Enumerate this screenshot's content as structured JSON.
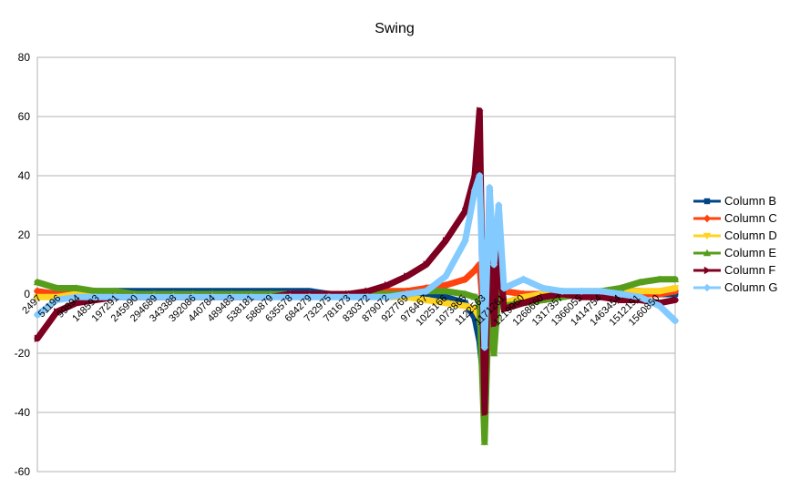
{
  "chart_data": {
    "type": "line",
    "title": "Swing",
    "xlabel": "",
    "ylabel": "",
    "ylim": [
      -60,
      80
    ],
    "yticks": [
      -60,
      -40,
      -20,
      0,
      20,
      40,
      60,
      80
    ],
    "grid": true,
    "legend_position": "right",
    "x_tick_labels": [
      "2497",
      "51196",
      "99894",
      "148593",
      "197291",
      "245990",
      "294689",
      "343388",
      "392086",
      "440784",
      "489483",
      "538181",
      "586879",
      "635578",
      "684279",
      "732975",
      "781673",
      "830372",
      "879072",
      "927769",
      "976467",
      "1025166",
      "1073865",
      "1122563",
      "1171261",
      "1219960",
      "1268660",
      "1317357",
      "1366055",
      "1414754",
      "1463454",
      "1512151",
      "1560850"
    ],
    "x": [
      2497,
      51196,
      99894,
      148593,
      197291,
      245990,
      294689,
      343388,
      392086,
      440784,
      489483,
      538181,
      586879,
      635578,
      684279,
      732975,
      781673,
      830372,
      879072,
      927769,
      976467,
      1025166,
      1073865,
      1098000,
      1110000,
      1122563,
      1135000,
      1146000,
      1158000,
      1171261,
      1219960,
      1268660,
      1317357,
      1366055,
      1414754,
      1463454,
      1512151,
      1560850,
      1600000
    ],
    "series": [
      {
        "name": "Column B",
        "color": "#004586",
        "marker": "square",
        "values": [
          -1,
          0,
          1,
          1,
          1,
          1,
          1,
          1,
          1,
          1,
          1,
          1,
          1,
          1,
          1,
          0,
          0,
          0,
          0,
          0,
          0,
          -1,
          -3,
          -8,
          -16,
          -32,
          12,
          -8,
          10,
          -3,
          -1,
          0,
          0,
          0,
          1,
          1,
          1,
          0,
          0
        ]
      },
      {
        "name": "Column C",
        "color": "#ff420e",
        "marker": "diamond",
        "values": [
          1,
          0,
          0,
          0,
          0,
          0,
          0,
          0,
          0,
          0,
          0,
          0,
          0,
          0,
          0,
          0,
          0,
          0,
          1,
          1,
          2,
          3,
          5,
          8,
          10,
          -12,
          18,
          -6,
          5,
          1,
          0,
          0,
          0,
          0,
          0,
          0,
          0,
          0,
          1
        ]
      },
      {
        "name": "Column D",
        "color": "#ffd320",
        "marker": "triangle-down",
        "values": [
          -1,
          -1,
          0,
          0,
          0,
          0,
          0,
          0,
          0,
          0,
          0,
          0,
          0,
          0,
          0,
          0,
          0,
          0,
          -1,
          -1,
          -2,
          -3,
          -4,
          -5,
          -8,
          -22,
          10,
          -6,
          4,
          -3,
          -1,
          0,
          0,
          1,
          1,
          1,
          1,
          1,
          2
        ]
      },
      {
        "name": "Column E",
        "color": "#579d1c",
        "marker": "triangle-up",
        "values": [
          4,
          2,
          2,
          1,
          1,
          0,
          0,
          0,
          0,
          0,
          0,
          0,
          0,
          0,
          0,
          0,
          0,
          0,
          0,
          0,
          1,
          1,
          0,
          -1,
          -2,
          -50,
          4,
          -20,
          2,
          -4,
          -3,
          -2,
          -1,
          0,
          1,
          2,
          4,
          5,
          5
        ]
      },
      {
        "name": "Column F",
        "color": "#7e0021",
        "marker": "triangle-right",
        "values": [
          -15,
          -6,
          -3,
          -2,
          -1,
          -1,
          -1,
          -1,
          -1,
          -1,
          -1,
          -1,
          -1,
          0,
          0,
          0,
          0,
          1,
          3,
          6,
          10,
          18,
          28,
          40,
          62,
          -40,
          35,
          -10,
          18,
          -5,
          -3,
          -1,
          0,
          -1,
          -1,
          -2,
          -2,
          -3,
          -2
        ]
      },
      {
        "name": "Column G",
        "color": "#83caff",
        "marker": "diamond",
        "values": [
          -7,
          -2,
          -1,
          -1,
          -1,
          -1,
          -1,
          -1,
          -1,
          -1,
          -1,
          -1,
          -1,
          -1,
          -1,
          -1,
          -1,
          -1,
          -1,
          0,
          1,
          6,
          18,
          35,
          40,
          -18,
          36,
          10,
          30,
          2,
          5,
          2,
          1,
          1,
          1,
          0,
          -1,
          -4,
          -9
        ]
      }
    ]
  }
}
